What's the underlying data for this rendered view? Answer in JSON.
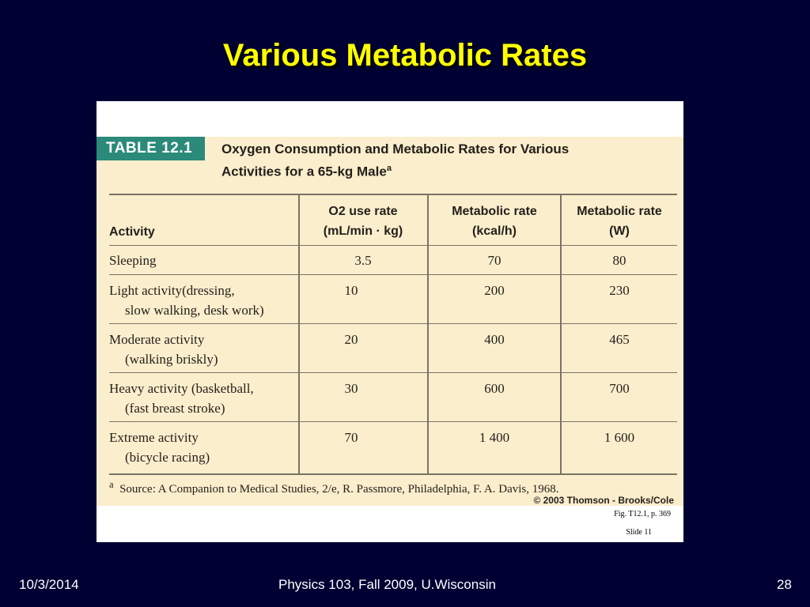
{
  "slide": {
    "title": "Various Metabolic Rates",
    "footer_date": "10/3/2014",
    "footer_course": "Physics 103, Fall 2009, U.Wisconsin",
    "footer_page": "28"
  },
  "figure": {
    "table_label": "TABLE 12.1",
    "caption_line1": "Oxygen Consumption and Metabolic Rates for Various",
    "caption_line2": "Activities for a 65-kg Male",
    "caption_note_mark": "a",
    "headers": {
      "activity": "Activity",
      "o2_line1": "O2 use rate",
      "o2_line2": "(mL/min · kg)",
      "kcal_line1": "Metabolic rate",
      "kcal_line2": "(kcal/h)",
      "watt_line1": "Metabolic rate",
      "watt_line2": "(W)"
    },
    "rows": [
      {
        "activity1": "Sleeping",
        "activity2": "",
        "o2": "3.5",
        "kcal": "70",
        "watts": "80"
      },
      {
        "activity1": "Light activity(dressing,",
        "activity2": "slow walking, desk work)",
        "o2": "10",
        "kcal": "200",
        "watts": "230"
      },
      {
        "activity1": "Moderate activity",
        "activity2": "(walking briskly)",
        "o2": "20",
        "kcal": "400",
        "watts": "465"
      },
      {
        "activity1": "Heavy activity (basketball,",
        "activity2": "(fast breast stroke)",
        "o2": "30",
        "kcal": "600",
        "watts": "700"
      },
      {
        "activity1": "Extreme activity",
        "activity2": "(bicycle racing)",
        "o2": "70",
        "kcal": "1 400",
        "watts": "1 600"
      }
    ],
    "source_mark": "a",
    "source_text": "Source: A Companion to Medical Studies, 2/e, R. Passmore, Philadelphia, F. A. Davis, 1968.",
    "copyright": "© 2003 Thomson - Brooks/Cole",
    "fig_ref": "Fig. T12.1, p. 369",
    "slide_ref": "Slide 11"
  },
  "colors": {
    "background": "#000033",
    "title": "#ffff00",
    "table_bg": "#fbeecd",
    "table_label_bg": "#2b8a7a"
  }
}
